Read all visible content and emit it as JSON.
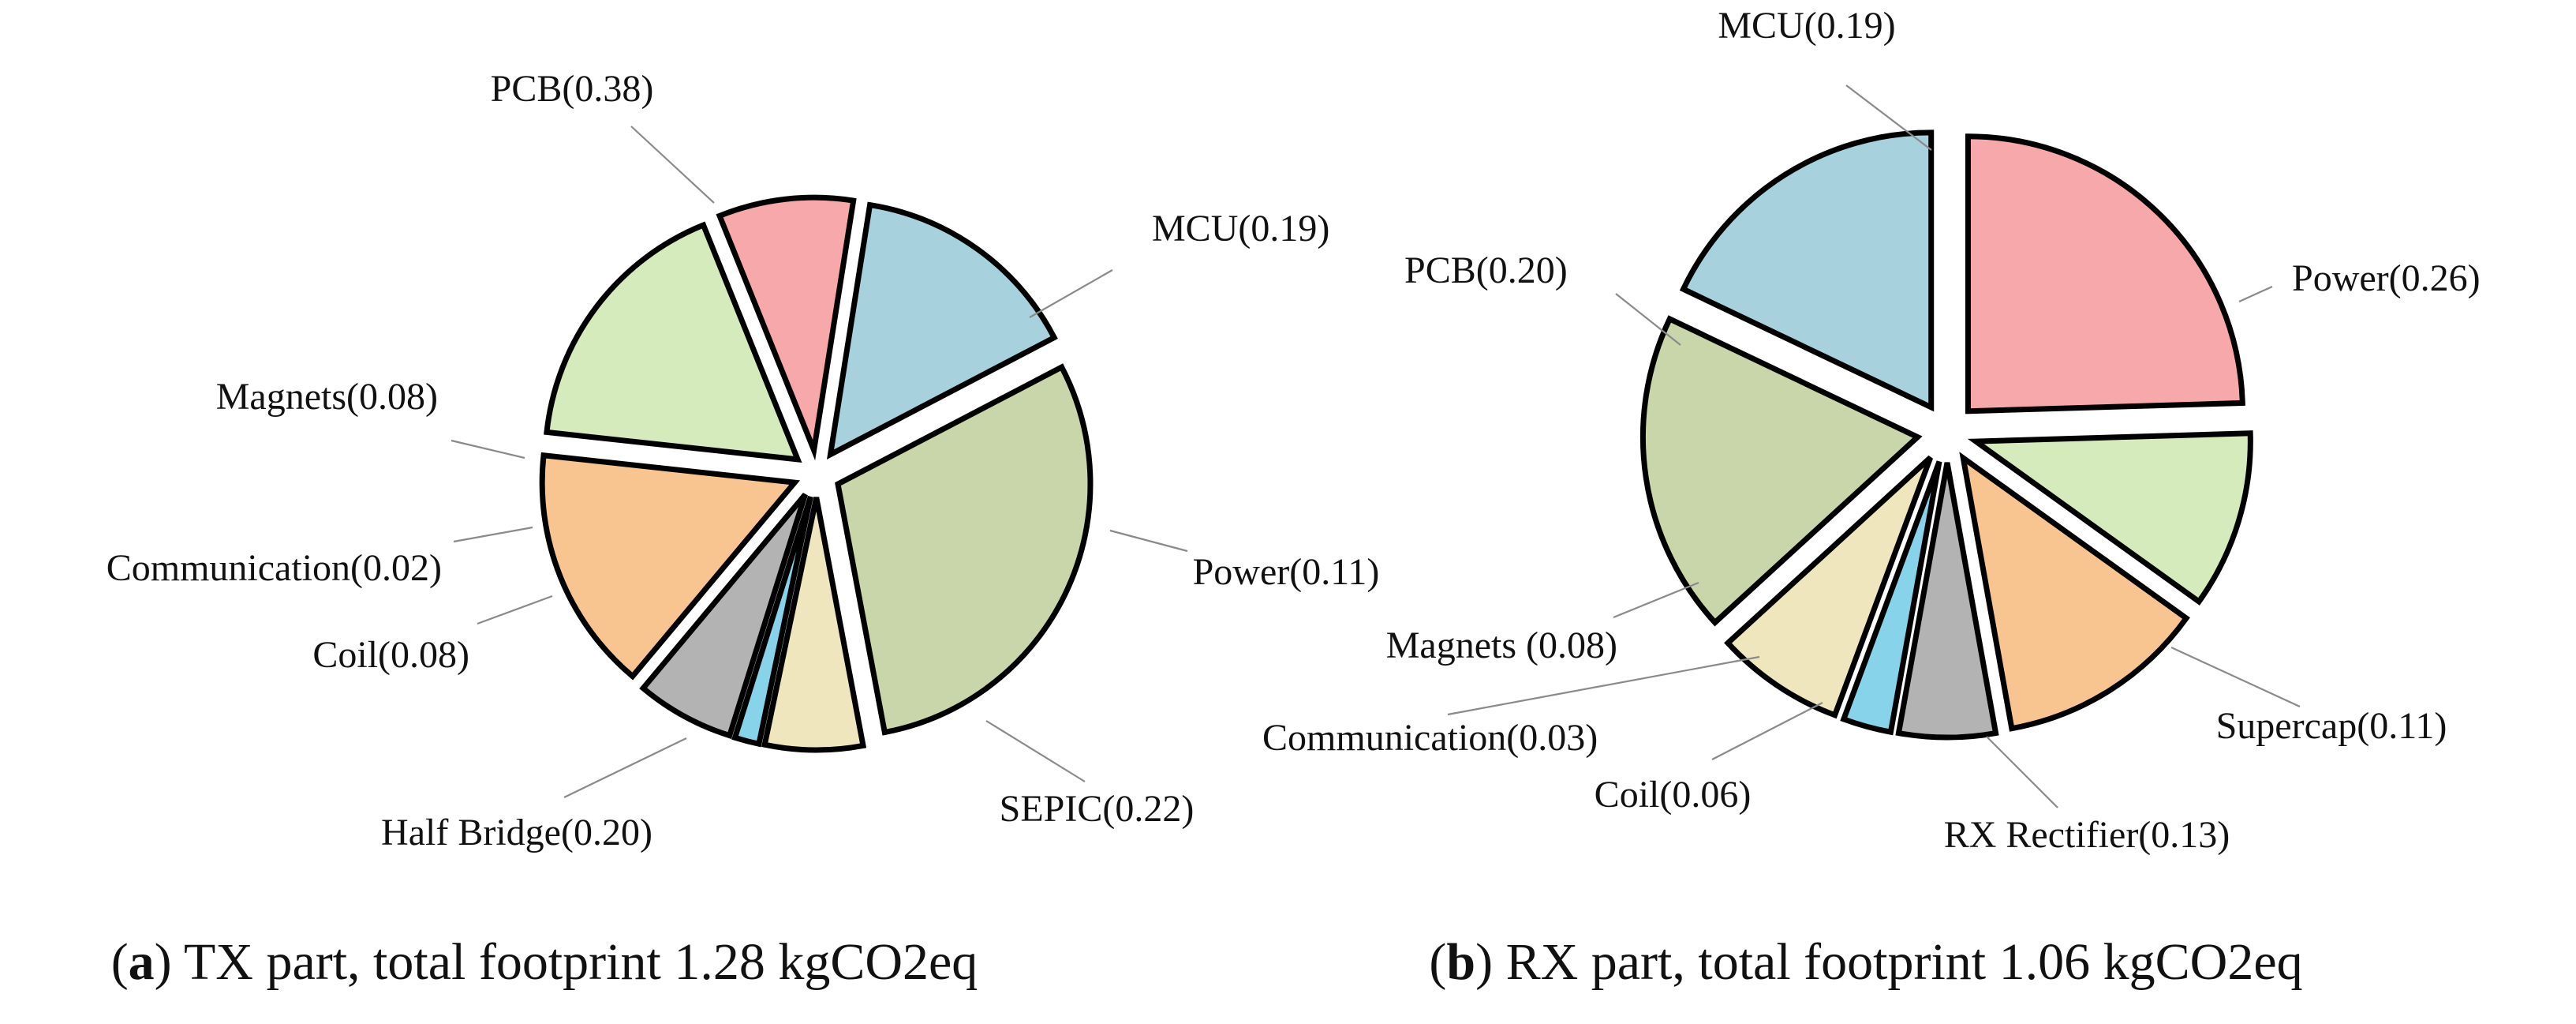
{
  "chart_data": [
    {
      "type": "pie",
      "id": "tx",
      "title": "",
      "caption": {
        "letter": "a",
        "text": "TX part, total footprint 1.28 kgCO2eq"
      },
      "categories": [
        "MCU",
        "PCB",
        "Magnets",
        "Communication",
        "Coil",
        "Half Bridge",
        "SEPIC",
        "Power"
      ],
      "values": [
        0.19,
        0.38,
        0.08,
        0.02,
        0.08,
        0.2,
        0.22,
        0.11
      ],
      "labels": [
        "MCU(0.19)",
        "PCB(0.38)",
        "Magnets(0.08)",
        "Communication(0.02)",
        "Coil(0.08)",
        "Half Bridge(0.20)",
        "SEPIC(0.22)",
        "Power(0.11)"
      ],
      "colors": [
        "#a8d1de",
        "#c8d6aa",
        "#f0e6bd",
        "#86d3ea",
        "#b3b3b3",
        "#f8c591",
        "#d5ebbb",
        "#f6a8ab"
      ],
      "exploded": true
    },
    {
      "type": "pie",
      "id": "rx",
      "title": "",
      "caption": {
        "letter": "b",
        "text": "RX part, total footprint 1.06 kgCO2eq"
      },
      "categories": [
        "Power",
        "Supercap",
        "RX Rectifier",
        "Coil",
        "Communication",
        "Magnets",
        "PCB",
        "MCU"
      ],
      "values": [
        0.26,
        0.11,
        0.13,
        0.06,
        0.03,
        0.08,
        0.2,
        0.19
      ],
      "labels": [
        "Power(0.26)",
        "Supercap(0.11)",
        "RX Rectifier(0.13)",
        "Coil(0.06)",
        "Communication(0.03)",
        "Magnets (0.08)",
        "PCB(0.20)",
        "MCU(0.19)"
      ],
      "colors": [
        "#f6a8ab",
        "#d5ebbb",
        "#f8c591",
        "#b3b3b3",
        "#86d3ea",
        "#f0e6bd",
        "#c8d6aa",
        "#a8d1de"
      ],
      "exploded": true
    }
  ]
}
